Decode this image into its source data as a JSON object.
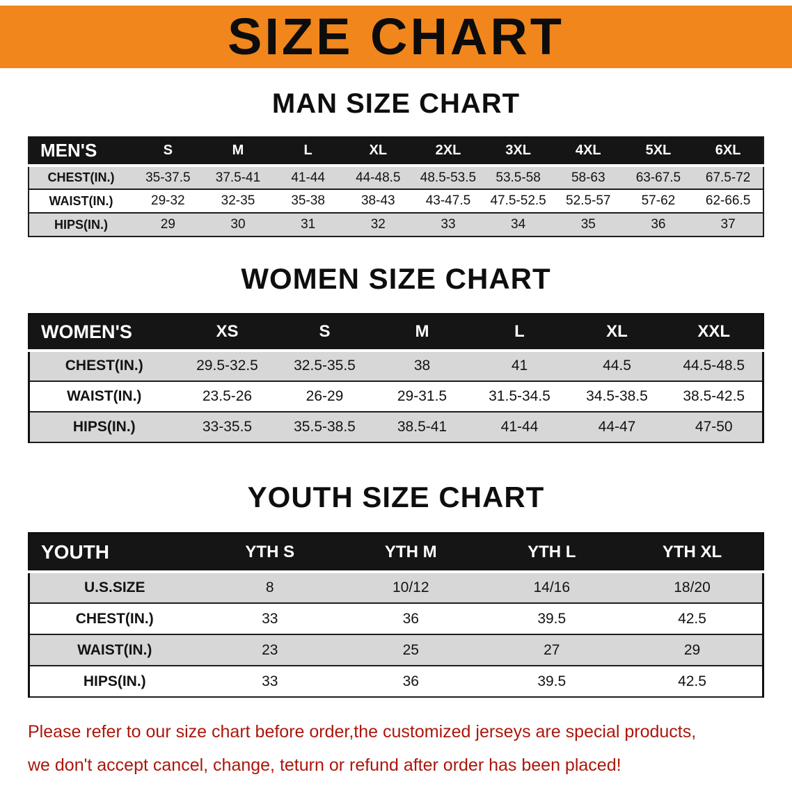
{
  "banner": {
    "title": "SIZE CHART"
  },
  "colors": {
    "banner_bg": "#f1861c",
    "table_header_bg": "#151515",
    "row_stripe_gray": "#d7d7d7",
    "notice_text": "#ab170c"
  },
  "men": {
    "heading": "MAN SIZE CHART",
    "table": {
      "header": [
        "MEN'S",
        "S",
        "M",
        "L",
        "XL",
        "2XL",
        "3XL",
        "4XL",
        "5XL",
        "6XL"
      ],
      "rows": [
        {
          "label": "CHEST(IN.)",
          "values": [
            "35-37.5",
            "37.5-41",
            "41-44",
            "44-48.5",
            "48.5-53.5",
            "53.5-58",
            "58-63",
            "63-67.5",
            "67.5-72"
          ]
        },
        {
          "label": "WAIST(IN.)",
          "values": [
            "29-32",
            "32-35",
            "35-38",
            "38-43",
            "43-47.5",
            "47.5-52.5",
            "52.5-57",
            "57-62",
            "62-66.5"
          ]
        },
        {
          "label": "HIPS(IN.)",
          "values": [
            "29",
            "30",
            "31",
            "32",
            "33",
            "34",
            "35",
            "36",
            "37"
          ]
        }
      ]
    }
  },
  "women": {
    "heading": "WOMEN SIZE CHART",
    "table": {
      "header": [
        "WOMEN'S",
        "XS",
        "S",
        "M",
        "L",
        "XL",
        "XXL"
      ],
      "rows": [
        {
          "label": "CHEST(IN.)",
          "values": [
            "29.5-32.5",
            "32.5-35.5",
            "38",
            "41",
            "44.5",
            "44.5-48.5"
          ]
        },
        {
          "label": "WAIST(IN.)",
          "values": [
            "23.5-26",
            "26-29",
            "29-31.5",
            "31.5-34.5",
            "34.5-38.5",
            "38.5-42.5"
          ]
        },
        {
          "label": "HIPS(IN.)",
          "values": [
            "33-35.5",
            "35.5-38.5",
            "38.5-41",
            "41-44",
            "44-47",
            "47-50"
          ]
        }
      ]
    }
  },
  "youth": {
    "heading": "YOUTH SIZE CHART",
    "table": {
      "header": [
        "YOUTH",
        "YTH S",
        "YTH M",
        "YTH L",
        "YTH XL"
      ],
      "rows": [
        {
          "label": "U.S.SIZE",
          "values": [
            "8",
            "10/12",
            "14/16",
            "18/20"
          ]
        },
        {
          "label": "CHEST(IN.)",
          "values": [
            "33",
            "36",
            "39.5",
            "42.5"
          ]
        },
        {
          "label": "WAIST(IN.)",
          "values": [
            "23",
            "25",
            "27",
            "29"
          ]
        },
        {
          "label": "HIPS(IN.)",
          "values": [
            "33",
            "36",
            "39.5",
            "42.5"
          ]
        }
      ]
    }
  },
  "notice": {
    "line1": "Please refer to our size chart before order,the customized jerseys are special products,",
    "line2": "we don't accept cancel, change, teturn or refund after order has been placed!"
  }
}
